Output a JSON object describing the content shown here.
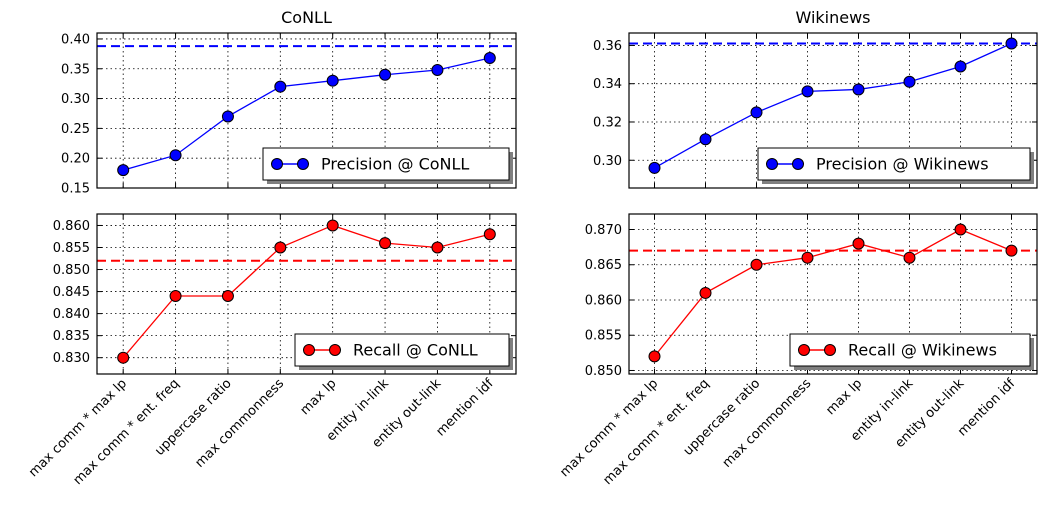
{
  "colors": {
    "precision": "#0000ff",
    "recall": "#ff0000",
    "axis": "#000000",
    "grid": "#000000"
  },
  "categories": [
    "max comm * max lp",
    "max comm * ent. freq",
    "uppercase ratio",
    "max commonness",
    "max lp",
    "entity in-link",
    "entity out-link",
    "mention idf"
  ],
  "chart_data": [
    {
      "type": "line",
      "title": "CoNLL",
      "series": [
        {
          "name": "Precision @ CoNLL",
          "values": [
            0.18,
            0.205,
            0.27,
            0.32,
            0.33,
            0.34,
            0.348,
            0.368
          ]
        }
      ],
      "reference_line": 0.388,
      "ylim": [
        0.15,
        0.41
      ],
      "yticks": [
        0.15,
        0.2,
        0.25,
        0.3,
        0.35,
        0.4
      ],
      "ytick_labels": [
        "0.15",
        "0.20",
        "0.25",
        "0.30",
        "0.35",
        "0.40"
      ],
      "legend": "bottom-right",
      "grid": true
    },
    {
      "type": "line",
      "title": "Wikinews",
      "series": [
        {
          "name": "Precision @ Wikinews",
          "values": [
            0.296,
            0.311,
            0.325,
            0.336,
            0.337,
            0.341,
            0.349,
            0.361
          ]
        }
      ],
      "reference_line": 0.361,
      "ylim": [
        0.2855,
        0.3665
      ],
      "yticks": [
        0.3,
        0.32,
        0.34,
        0.36
      ],
      "ytick_labels": [
        "0.30",
        "0.32",
        "0.34",
        "0.36"
      ],
      "legend": "bottom-right",
      "grid": true
    },
    {
      "type": "line",
      "title": "",
      "series": [
        {
          "name": "Recall @ CoNLL",
          "values": [
            0.83,
            0.844,
            0.844,
            0.855,
            0.86,
            0.856,
            0.855,
            0.858
          ]
        }
      ],
      "reference_line": 0.852,
      "ylim": [
        0.8263,
        0.8626
      ],
      "yticks": [
        0.83,
        0.835,
        0.84,
        0.845,
        0.85,
        0.855,
        0.86
      ],
      "ytick_labels": [
        "0.830",
        "0.835",
        "0.840",
        "0.845",
        "0.850",
        "0.855",
        "0.860"
      ],
      "legend": "bottom-right",
      "grid": true
    },
    {
      "type": "line",
      "title": "",
      "series": [
        {
          "name": "Recall @ Wikinews",
          "values": [
            0.852,
            0.861,
            0.865,
            0.866,
            0.868,
            0.866,
            0.87,
            0.867
          ]
        }
      ],
      "reference_line": 0.867,
      "ylim": [
        0.8495,
        0.8722
      ],
      "yticks": [
        0.85,
        0.855,
        0.86,
        0.865,
        0.87
      ],
      "ytick_labels": [
        "0.850",
        "0.855",
        "0.860",
        "0.865",
        "0.870"
      ],
      "legend": "bottom-right",
      "grid": true
    }
  ]
}
